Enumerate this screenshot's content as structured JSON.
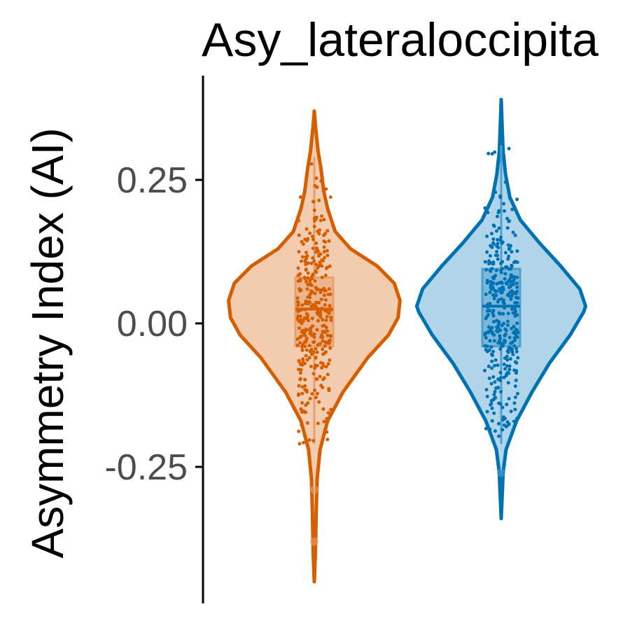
{
  "chart_data": {
    "type": "violin",
    "title": "Asy_lateraloccipita",
    "ylabel": "Asymmetry Index (AI)",
    "xlabel": "",
    "ylim": [
      -0.47,
      0.43
    ],
    "yticks": [
      0.25,
      0.0,
      -0.25
    ],
    "ytick_labels": [
      "0.25",
      "0.00",
      "-0.25"
    ],
    "x_axis_visible": false,
    "legend": "none",
    "series": [
      {
        "fill_color": "#f3ccaf",
        "line_color": "#d55e00",
        "box_color": "#e6a070",
        "min": -0.45,
        "max": 0.37,
        "q1": -0.04,
        "median": 0.025,
        "q3": 0.08,
        "whisker_low": -0.21,
        "whisker_high": 0.29,
        "outliers": [
          -0.29,
          -0.38
        ],
        "density": [
          [
            -0.45,
            0.0
          ],
          [
            -0.4,
            0.012
          ],
          [
            -0.33,
            0.02
          ],
          [
            -0.27,
            0.03
          ],
          [
            -0.22,
            0.06
          ],
          [
            -0.17,
            0.14
          ],
          [
            -0.12,
            0.3
          ],
          [
            -0.06,
            0.56
          ],
          [
            -0.02,
            0.78
          ],
          [
            0.01,
            0.88
          ],
          [
            0.04,
            0.9
          ],
          [
            0.07,
            0.84
          ],
          [
            0.1,
            0.66
          ],
          [
            0.13,
            0.38
          ],
          [
            0.16,
            0.22
          ],
          [
            0.2,
            0.14
          ],
          [
            0.23,
            0.1
          ],
          [
            0.27,
            0.07
          ],
          [
            0.3,
            0.04
          ],
          [
            0.34,
            0.015
          ],
          [
            0.37,
            0.0
          ]
        ]
      },
      {
        "fill_color": "#b0d4ea",
        "line_color": "#0072b2",
        "box_color": "#4f9fcf",
        "min": -0.34,
        "max": 0.39,
        "q1": -0.04,
        "median": 0.03,
        "q3": 0.095,
        "whisker_low": -0.21,
        "whisker_high": 0.31,
        "outliers": [
          -0.26
        ],
        "density": [
          [
            -0.34,
            0.0
          ],
          [
            -0.3,
            0.01
          ],
          [
            -0.26,
            0.02
          ],
          [
            -0.22,
            0.05
          ],
          [
            -0.17,
            0.16
          ],
          [
            -0.12,
            0.32
          ],
          [
            -0.07,
            0.5
          ],
          [
            -0.02,
            0.72
          ],
          [
            0.02,
            0.86
          ],
          [
            0.03,
            0.88
          ],
          [
            0.06,
            0.82
          ],
          [
            0.1,
            0.62
          ],
          [
            0.14,
            0.4
          ],
          [
            0.18,
            0.2
          ],
          [
            0.22,
            0.09
          ],
          [
            0.26,
            0.045
          ],
          [
            0.3,
            0.02
          ],
          [
            0.34,
            0.01
          ],
          [
            0.39,
            0.0
          ]
        ]
      }
    ]
  }
}
